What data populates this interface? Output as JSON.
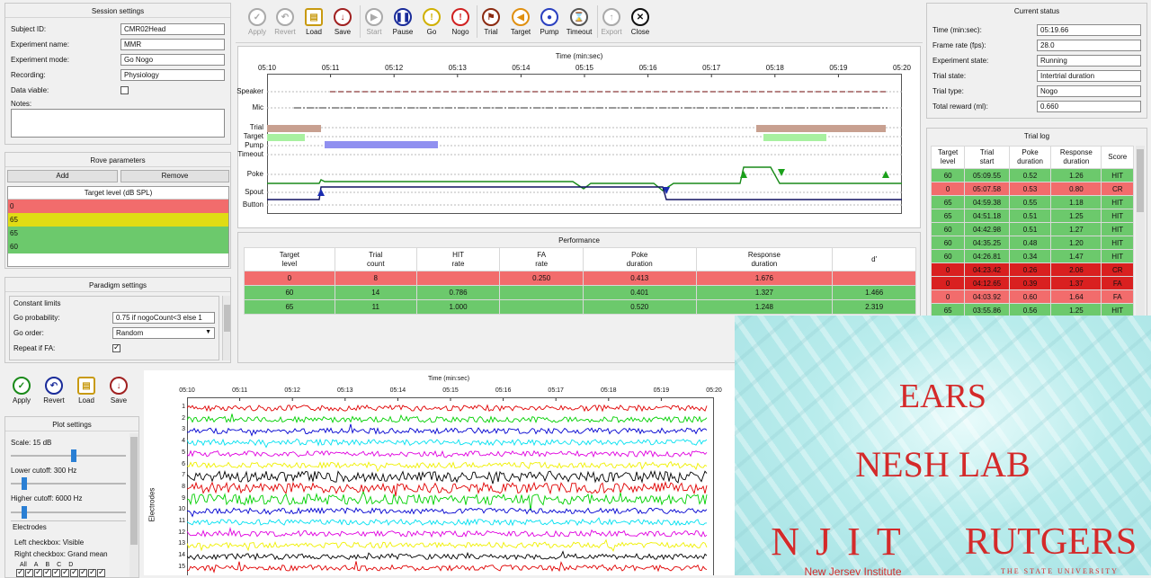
{
  "session": {
    "title": "Session settings",
    "fields": [
      {
        "label": "Subject ID:",
        "value": "CMR02Head"
      },
      {
        "label": "Experiment name:",
        "value": "MMR"
      },
      {
        "label": "Experiment mode:",
        "value": "Go Nogo"
      },
      {
        "label": "Recording:",
        "value": "Physiology"
      }
    ],
    "data_viable_label": "Data viable:",
    "notes_label": "Notes:"
  },
  "rove": {
    "title": "Rove parameters",
    "add_label": "Add",
    "remove_label": "Remove",
    "header": "Target level (dB SPL)",
    "rows": [
      "0",
      "65",
      "65",
      "60"
    ]
  },
  "paradigm": {
    "title": "Paradigm settings",
    "group_label": "Constant limits",
    "go_probability_label": "Go probability:",
    "go_probability_value": "0.75 if nogoCount<3 else 1",
    "go_order_label": "Go order:",
    "go_order_value": "Random",
    "repeat_fa_label": "Repeat if FA:"
  },
  "toolbar": {
    "buttons": [
      {
        "label": "Apply",
        "icon": "check-icon"
      },
      {
        "label": "Revert",
        "icon": "undo-icon"
      },
      {
        "label": "Load",
        "icon": "load-icon"
      },
      {
        "label": "Save",
        "icon": "save-icon"
      },
      {
        "label": "Start",
        "icon": "play-icon"
      },
      {
        "label": "Pause",
        "icon": "pause-icon"
      },
      {
        "label": "Go",
        "icon": "go-icon"
      },
      {
        "label": "Nogo",
        "icon": "nogo-icon"
      },
      {
        "label": "Trial",
        "icon": "trial-icon"
      },
      {
        "label": "Target",
        "icon": "speaker-icon"
      },
      {
        "label": "Pump",
        "icon": "drop-icon"
      },
      {
        "label": "Timeout",
        "icon": "timeout-icon"
      },
      {
        "label": "Export",
        "icon": "export-icon"
      },
      {
        "label": "Close",
        "icon": "close-icon"
      }
    ]
  },
  "event_plot": {
    "time_label": "Time (min:sec)",
    "ticks": [
      "05:10",
      "05:11",
      "05:12",
      "05:13",
      "05:14",
      "05:15",
      "05:16",
      "05:17",
      "05:18",
      "05:19",
      "05:20"
    ],
    "channels": [
      "Speaker",
      "Mic",
      "Trial",
      "Target",
      "Pump",
      "Timeout",
      "Poke",
      "Spout",
      "Button"
    ]
  },
  "performance": {
    "title": "Performance",
    "headers": [
      "Target\nlevel",
      "Trial\ncount",
      "HIT\nrate",
      "FA\nrate",
      "Poke\nduration",
      "Response\nduration",
      "d'"
    ],
    "rows": [
      {
        "cells": [
          "0",
          "8",
          "",
          "0.250",
          "0.413",
          "1.676",
          ""
        ],
        "color": "red"
      },
      {
        "cells": [
          "60",
          "14",
          "0.786",
          "",
          "0.401",
          "1.327",
          "1.466"
        ],
        "color": "green"
      },
      {
        "cells": [
          "65",
          "11",
          "1.000",
          "",
          "0.520",
          "1.248",
          "2.319"
        ],
        "color": "green"
      }
    ]
  },
  "status": {
    "title": "Current status",
    "fields": [
      {
        "label": "Time (min:sec):",
        "value": "05:19.66"
      },
      {
        "label": "Frame rate (fps):",
        "value": "28.0"
      },
      {
        "label": "Experiment state:",
        "value": "Running"
      },
      {
        "label": "Trial state:",
        "value": "Intertrial duration"
      },
      {
        "label": "Trial type:",
        "value": "Nogo"
      },
      {
        "label": "Total reward (ml):",
        "value": "0.660"
      }
    ]
  },
  "trial_log": {
    "title": "Trial log",
    "headers": [
      "Target\nlevel",
      "Trial\nstart",
      "Poke\nduration",
      "Response\nduration",
      "Score"
    ],
    "rows": [
      {
        "cells": [
          "60",
          "05:09.55",
          "0.52",
          "1.26",
          "HIT"
        ],
        "color": "green"
      },
      {
        "cells": [
          "0",
          "05:07.58",
          "0.53",
          "0.80",
          "CR"
        ],
        "color": "red"
      },
      {
        "cells": [
          "65",
          "04:59.38",
          "0.55",
          "1.18",
          "HIT"
        ],
        "color": "green"
      },
      {
        "cells": [
          "65",
          "04:51.18",
          "0.51",
          "1.25",
          "HIT"
        ],
        "color": "green"
      },
      {
        "cells": [
          "60",
          "04:42.98",
          "0.51",
          "1.27",
          "HIT"
        ],
        "color": "green"
      },
      {
        "cells": [
          "60",
          "04:35.25",
          "0.48",
          "1.20",
          "HIT"
        ],
        "color": "green"
      },
      {
        "cells": [
          "60",
          "04:26.81",
          "0.34",
          "1.47",
          "HIT"
        ],
        "color": "green"
      },
      {
        "cells": [
          "0",
          "04:23.42",
          "0.26",
          "2.06",
          "CR"
        ],
        "color": "dred"
      },
      {
        "cells": [
          "0",
          "04:12.65",
          "0.39",
          "1.37",
          "FA"
        ],
        "color": "dred"
      },
      {
        "cells": [
          "0",
          "04:03.92",
          "0.60",
          "1.64",
          "FA"
        ],
        "color": "red"
      },
      {
        "cells": [
          "65",
          "03:55.86",
          "0.56",
          "1.25",
          "HIT"
        ],
        "color": "green"
      }
    ]
  },
  "lower_toolbar": {
    "buttons": [
      {
        "label": "Apply",
        "icon": "check-icon"
      },
      {
        "label": "Revert",
        "icon": "undo-icon"
      },
      {
        "label": "Load",
        "icon": "load-icon"
      },
      {
        "label": "Save",
        "icon": "save-icon"
      }
    ]
  },
  "plot_settings": {
    "title": "Plot settings",
    "scale_label": "Scale: 15 dB",
    "scale_level": 0.55,
    "lower_cutoff_label": "Lower cutoff: 300 Hz",
    "lower_cutoff_level": 0.1,
    "higher_cutoff_label": "Higher cutoff: 6000 Hz",
    "higher_cutoff_level": 0.1,
    "electrodes_label": "Electrodes",
    "left_checkbox_label": "Left checkbox: Visible",
    "right_checkbox_label": "Right checkbox: Grand mean",
    "columns": [
      "All",
      "A",
      "B",
      "C",
      "D"
    ]
  },
  "ephys_plot": {
    "time_label": "Time (min:sec)",
    "ylabel": "Electrodes",
    "ticks": [
      "05:10",
      "05:11",
      "05:12",
      "05:13",
      "05:14",
      "05:15",
      "05:16",
      "05:17",
      "05:18",
      "05:19",
      "05:20"
    ],
    "channels": [
      "1",
      "2",
      "3",
      "4",
      "5",
      "6",
      "7",
      "8",
      "9",
      "10",
      "11",
      "12",
      "13",
      "14",
      "15"
    ],
    "colors": [
      "#e00000",
      "#00d000",
      "#0000d0",
      "#00e0f0",
      "#e000e0",
      "#f0f000",
      "#000000",
      "#e00000",
      "#00d000",
      "#0000d0",
      "#00e0f0",
      "#e000e0",
      "#f0f000",
      "#000000",
      "#e00000"
    ]
  },
  "logo": {
    "line1": "EARS",
    "line2": "NESH LAB",
    "njit": "NJIT",
    "njit_sub": "New Jersey Institute",
    "rutgers": "RUTGERS",
    "rutgers_sub": "THE STATE UNIVERSITY"
  }
}
